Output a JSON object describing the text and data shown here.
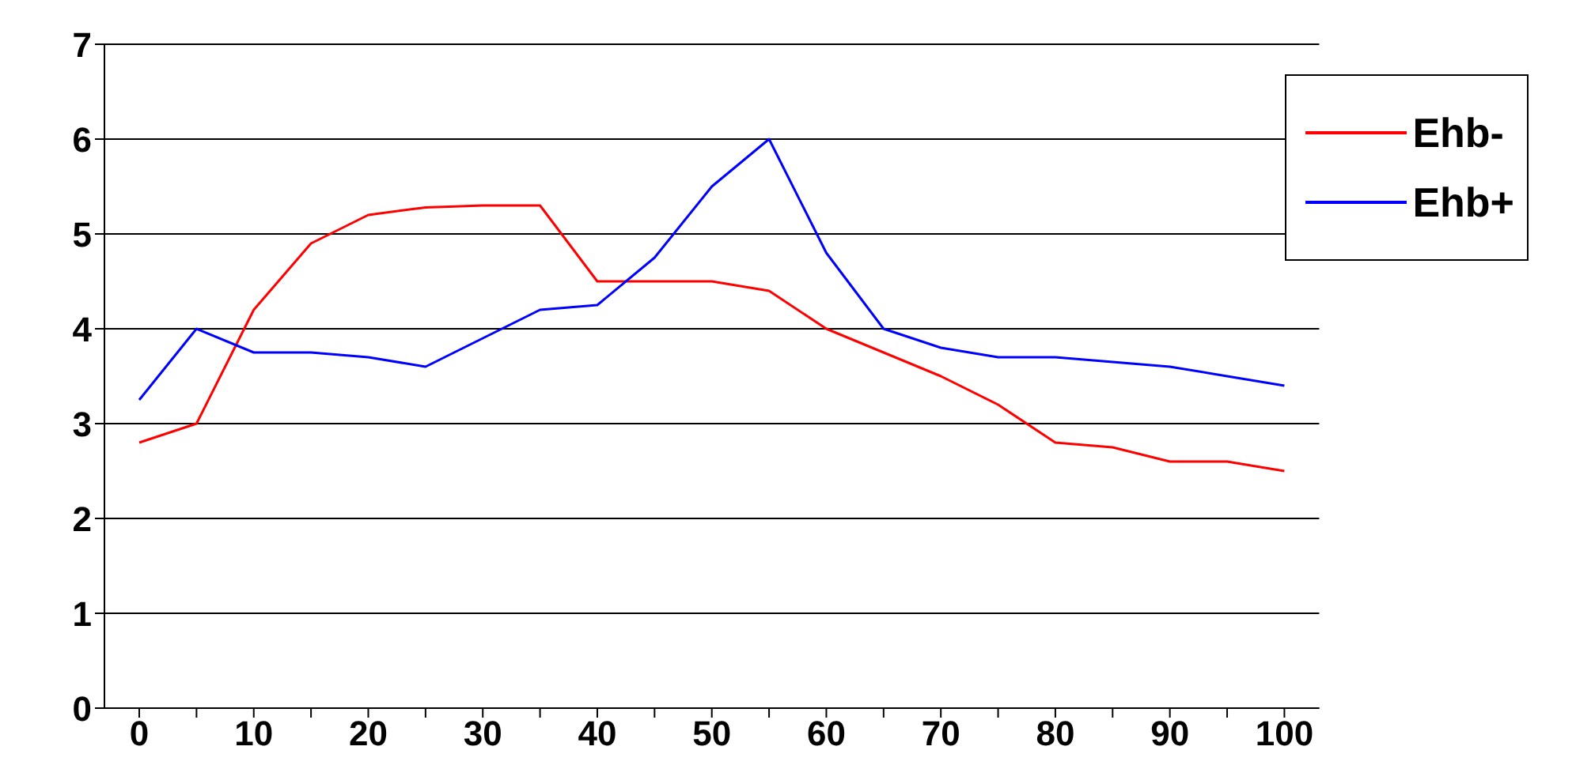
{
  "chart_data": {
    "type": "line",
    "categories": [
      "0",
      null,
      "10",
      null,
      "20",
      null,
      "30",
      null,
      "40",
      null,
      "50",
      null,
      "60",
      null,
      "70",
      null,
      "80",
      null,
      "90",
      null,
      "100"
    ],
    "series": [
      {
        "name": "Ehb-",
        "color": "#ff0000",
        "values": [
          2.8,
          3.0,
          4.2,
          4.9,
          5.2,
          5.28,
          5.3,
          5.3,
          4.5,
          4.5,
          4.5,
          4.4,
          4.0,
          3.75,
          3.5,
          3.2,
          2.8,
          2.75,
          2.6,
          2.6,
          2.5
        ]
      },
      {
        "name": "Ehb+",
        "color": "#0000ff",
        "values": [
          3.25,
          4.0,
          3.75,
          3.75,
          3.7,
          3.6,
          3.9,
          4.2,
          4.25,
          4.75,
          5.5,
          6.0,
          4.8,
          4.0,
          3.8,
          3.7,
          3.7,
          3.65,
          3.6,
          3.5,
          3.4
        ]
      }
    ],
    "ylim": [
      0,
      7
    ],
    "yticks": [
      0,
      1,
      2,
      3,
      4,
      5,
      6,
      7
    ],
    "grid": "y",
    "legend": "top right",
    "marker": "none",
    "line_style": "solid"
  }
}
